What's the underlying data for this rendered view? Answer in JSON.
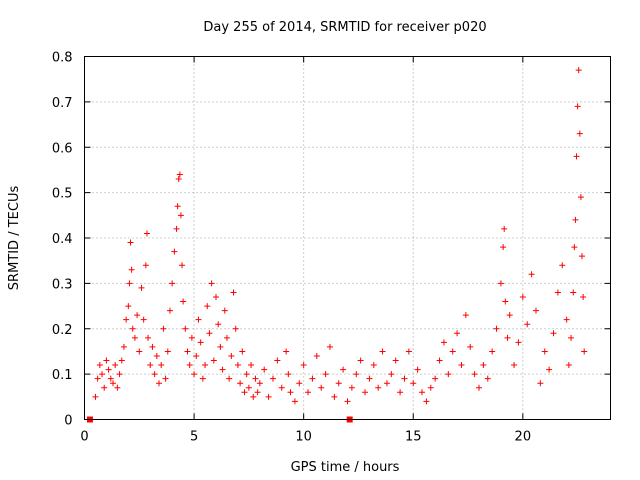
{
  "chart_data": {
    "type": "scatter",
    "title": "Day 255 of 2014, SRMTID for receiver p020",
    "xlabel": "GPS time / hours",
    "ylabel": "SRMTID / TECUs",
    "xlim": [
      0,
      24
    ],
    "ylim": [
      0,
      0.8
    ],
    "xticks": [
      0,
      5,
      10,
      15,
      20
    ],
    "xtick_labels": [
      "0",
      "5",
      "10",
      "15",
      "20"
    ],
    "yticks": [
      0,
      0.1,
      0.2,
      0.3,
      0.4,
      0.5,
      0.6,
      0.7,
      0.8
    ],
    "ytick_labels": [
      "0",
      "0.1",
      "0.2",
      "0.3",
      "0.4",
      "0.5",
      "0.6",
      "0.7",
      "0.8"
    ],
    "grid": true,
    "colors": {
      "series": "#ff0000",
      "grid": "#a0a0a0",
      "axes": "#000000"
    },
    "markers": [
      {
        "x": 0.25,
        "y": 0
      },
      {
        "x": 12.1,
        "y": 0
      }
    ],
    "series": [
      {
        "name": "SRMTID",
        "marker": "plus",
        "points": [
          [
            0.5,
            0.05
          ],
          [
            0.6,
            0.09
          ],
          [
            0.7,
            0.12
          ],
          [
            0.8,
            0.1
          ],
          [
            0.9,
            0.07
          ],
          [
            1.0,
            0.13
          ],
          [
            1.1,
            0.11
          ],
          [
            1.2,
            0.09
          ],
          [
            1.3,
            0.08
          ],
          [
            1.4,
            0.12
          ],
          [
            1.5,
            0.07
          ],
          [
            1.6,
            0.1
          ],
          [
            1.7,
            0.13
          ],
          [
            1.8,
            0.16
          ],
          [
            1.9,
            0.22
          ],
          [
            2.0,
            0.25
          ],
          [
            2.05,
            0.3
          ],
          [
            2.1,
            0.39
          ],
          [
            2.15,
            0.33
          ],
          [
            2.2,
            0.2
          ],
          [
            2.3,
            0.18
          ],
          [
            2.4,
            0.23
          ],
          [
            2.5,
            0.15
          ],
          [
            2.6,
            0.29
          ],
          [
            2.7,
            0.22
          ],
          [
            2.8,
            0.34
          ],
          [
            2.85,
            0.41
          ],
          [
            2.9,
            0.18
          ],
          [
            3.0,
            0.12
          ],
          [
            3.1,
            0.16
          ],
          [
            3.2,
            0.1
          ],
          [
            3.3,
            0.14
          ],
          [
            3.4,
            0.08
          ],
          [
            3.5,
            0.12
          ],
          [
            3.6,
            0.2
          ],
          [
            3.7,
            0.09
          ],
          [
            3.8,
            0.15
          ],
          [
            3.9,
            0.24
          ],
          [
            4.0,
            0.3
          ],
          [
            4.1,
            0.37
          ],
          [
            4.2,
            0.42
          ],
          [
            4.25,
            0.47
          ],
          [
            4.3,
            0.53
          ],
          [
            4.35,
            0.54
          ],
          [
            4.4,
            0.45
          ],
          [
            4.45,
            0.34
          ],
          [
            4.5,
            0.26
          ],
          [
            4.6,
            0.2
          ],
          [
            4.7,
            0.15
          ],
          [
            4.8,
            0.12
          ],
          [
            4.9,
            0.18
          ],
          [
            5.0,
            0.1
          ],
          [
            5.1,
            0.14
          ],
          [
            5.2,
            0.22
          ],
          [
            5.3,
            0.17
          ],
          [
            5.4,
            0.09
          ],
          [
            5.5,
            0.12
          ],
          [
            5.6,
            0.25
          ],
          [
            5.7,
            0.19
          ],
          [
            5.8,
            0.3
          ],
          [
            5.9,
            0.13
          ],
          [
            6.0,
            0.27
          ],
          [
            6.1,
            0.21
          ],
          [
            6.2,
            0.16
          ],
          [
            6.3,
            0.11
          ],
          [
            6.4,
            0.24
          ],
          [
            6.5,
            0.18
          ],
          [
            6.6,
            0.09
          ],
          [
            6.7,
            0.14
          ],
          [
            6.8,
            0.28
          ],
          [
            6.9,
            0.2
          ],
          [
            7.0,
            0.12
          ],
          [
            7.1,
            0.08
          ],
          [
            7.2,
            0.15
          ],
          [
            7.3,
            0.06
          ],
          [
            7.4,
            0.1
          ],
          [
            7.5,
            0.07
          ],
          [
            7.6,
            0.12
          ],
          [
            7.7,
            0.05
          ],
          [
            7.8,
            0.09
          ],
          [
            7.9,
            0.06
          ],
          [
            8.0,
            0.08
          ],
          [
            8.2,
            0.11
          ],
          [
            8.4,
            0.05
          ],
          [
            8.6,
            0.09
          ],
          [
            8.8,
            0.13
          ],
          [
            9.0,
            0.07
          ],
          [
            9.2,
            0.15
          ],
          [
            9.3,
            0.1
          ],
          [
            9.4,
            0.06
          ],
          [
            9.6,
            0.04
          ],
          [
            9.8,
            0.08
          ],
          [
            10.0,
            0.12
          ],
          [
            10.2,
            0.06
          ],
          [
            10.4,
            0.09
          ],
          [
            10.6,
            0.14
          ],
          [
            10.8,
            0.07
          ],
          [
            11.0,
            0.1
          ],
          [
            11.2,
            0.16
          ],
          [
            11.4,
            0.05
          ],
          [
            11.6,
            0.08
          ],
          [
            11.8,
            0.11
          ],
          [
            12.0,
            0.04
          ],
          [
            12.2,
            0.07
          ],
          [
            12.4,
            0.1
          ],
          [
            12.6,
            0.13
          ],
          [
            12.8,
            0.06
          ],
          [
            13.0,
            0.09
          ],
          [
            13.2,
            0.12
          ],
          [
            13.4,
            0.07
          ],
          [
            13.6,
            0.15
          ],
          [
            13.8,
            0.08
          ],
          [
            14.0,
            0.1
          ],
          [
            14.2,
            0.13
          ],
          [
            14.4,
            0.06
          ],
          [
            14.6,
            0.09
          ],
          [
            14.8,
            0.15
          ],
          [
            15.0,
            0.08
          ],
          [
            15.2,
            0.11
          ],
          [
            15.4,
            0.06
          ],
          [
            15.6,
            0.04
          ],
          [
            15.8,
            0.07
          ],
          [
            16.0,
            0.09
          ],
          [
            16.2,
            0.13
          ],
          [
            16.4,
            0.17
          ],
          [
            16.6,
            0.1
          ],
          [
            16.8,
            0.15
          ],
          [
            17.0,
            0.19
          ],
          [
            17.2,
            0.12
          ],
          [
            17.4,
            0.23
          ],
          [
            17.6,
            0.16
          ],
          [
            17.8,
            0.1
          ],
          [
            18.0,
            0.07
          ],
          [
            18.2,
            0.12
          ],
          [
            18.4,
            0.09
          ],
          [
            18.6,
            0.15
          ],
          [
            18.8,
            0.2
          ],
          [
            19.0,
            0.3
          ],
          [
            19.1,
            0.38
          ],
          [
            19.15,
            0.42
          ],
          [
            19.2,
            0.26
          ],
          [
            19.3,
            0.18
          ],
          [
            19.4,
            0.23
          ],
          [
            19.6,
            0.12
          ],
          [
            19.8,
            0.17
          ],
          [
            20.0,
            0.27
          ],
          [
            20.2,
            0.21
          ],
          [
            20.4,
            0.32
          ],
          [
            20.6,
            0.24
          ],
          [
            20.8,
            0.08
          ],
          [
            21.0,
            0.15
          ],
          [
            21.2,
            0.11
          ],
          [
            21.4,
            0.19
          ],
          [
            21.6,
            0.28
          ],
          [
            21.8,
            0.34
          ],
          [
            22.0,
            0.22
          ],
          [
            22.1,
            0.12
          ],
          [
            22.2,
            0.18
          ],
          [
            22.3,
            0.28
          ],
          [
            22.35,
            0.38
          ],
          [
            22.4,
            0.44
          ],
          [
            22.45,
            0.58
          ],
          [
            22.5,
            0.69
          ],
          [
            22.55,
            0.77
          ],
          [
            22.6,
            0.63
          ],
          [
            22.65,
            0.49
          ],
          [
            22.7,
            0.36
          ],
          [
            22.75,
            0.27
          ],
          [
            22.8,
            0.15
          ]
        ]
      }
    ]
  }
}
